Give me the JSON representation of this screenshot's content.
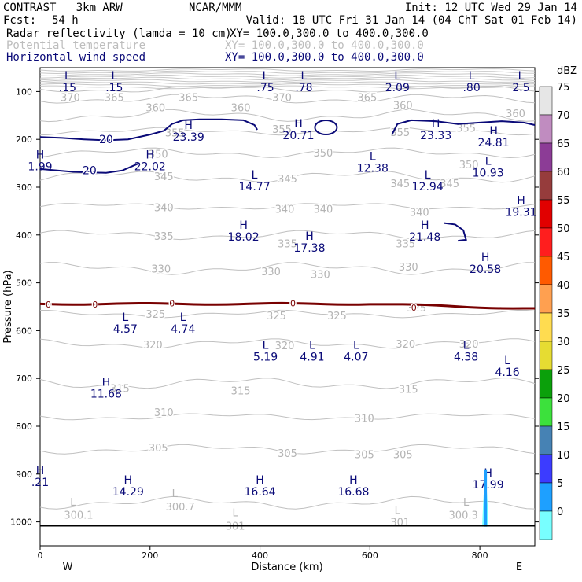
{
  "header": {
    "model": "CONTRAST   3km ARW",
    "org": "NCAR/MMM",
    "init": "Init: 12 UTC Wed 29 Jan 14",
    "fcst_label": "Fcst:",
    "fcst_value": "54 h",
    "valid": "Valid: 18 UTC Fri 31 Jan 14 (04 ChT Sat 01 Feb 14)",
    "fields": [
      {
        "name": "Radar reflectivity (lamda = 10 cm)",
        "xy": "XY= 100.0,300.0 to 400.0,300.0",
        "color": "#000000"
      },
      {
        "name": "Potential temperature",
        "xy": "XY= 100.0,300.0 to 400.0,300.0",
        "color": "#bdbdbd"
      },
      {
        "name": "Horizontal wind speed",
        "xy": "XY= 100.0,300.0 to 400.0,300.0",
        "color": "#0a0a78"
      }
    ]
  },
  "colorbar": {
    "unit": "dBZ",
    "levels": [
      "75",
      "70",
      "65",
      "60",
      "55",
      "50",
      "45",
      "40",
      "35",
      "30",
      "25",
      "20",
      "15",
      "10",
      "5",
      "0"
    ],
    "colors": [
      "#e6e6e6",
      "#c08cc0",
      "#8c3c96",
      "#963c3c",
      "#e10000",
      "#ff1e1e",
      "#ff5a00",
      "#ffa050",
      "#ffdc50",
      "#e6dc32",
      "#0ba00b",
      "#3ce13c",
      "#4682b4",
      "#3c3cff",
      "#1ea0ff",
      "#78ffff"
    ]
  },
  "chart_data": {
    "type": "cross-section",
    "xlabel": "Distance (km)",
    "ylabel": "Pressure (hPa)",
    "xlim": [
      0,
      900
    ],
    "ylim": [
      1050,
      50
    ],
    "x_ticks": [
      "0",
      "200",
      "400",
      "600",
      "800"
    ],
    "y_ticks": [
      "100",
      "200",
      "300",
      "400",
      "500",
      "600",
      "700",
      "800",
      "900",
      "1000"
    ],
    "compass_left": "W",
    "compass_right": "E",
    "theta_contours": [
      {
        "label": "370",
        "p": 95
      },
      {
        "label": "365",
        "p": 115
      },
      {
        "label": "360",
        "p": 150
      },
      {
        "label": "355",
        "p": 183
      },
      {
        "label": "350",
        "p": 228
      },
      {
        "label": "345",
        "p": 278
      },
      {
        "label": "340",
        "p": 340
      },
      {
        "label": "335",
        "p": 400
      },
      {
        "label": "330",
        "p": 470
      },
      {
        "label": "325",
        "p": 565
      },
      {
        "label": "320",
        "p": 627
      },
      {
        "label": "315",
        "p": 710
      },
      {
        "label": "310",
        "p": 780
      },
      {
        "label": "305",
        "p": 848
      },
      {
        "label": "300",
        "p": 960
      }
    ],
    "theta_labels": [
      {
        "text": "370",
        "x": 55,
        "p": 112
      },
      {
        "text": "365",
        "x": 135,
        "p": 112
      },
      {
        "text": "360",
        "x": 210,
        "p": 133
      },
      {
        "text": "365",
        "x": 270,
        "p": 112
      },
      {
        "text": "360",
        "x": 365,
        "p": 133
      },
      {
        "text": "370",
        "x": 440,
        "p": 112
      },
      {
        "text": "365",
        "x": 595,
        "p": 112
      },
      {
        "text": "360",
        "x": 660,
        "p": 128
      },
      {
        "text": "360",
        "x": 865,
        "p": 145
      },
      {
        "text": "355",
        "x": 245,
        "p": 186
      },
      {
        "text": "355",
        "x": 440,
        "p": 178
      },
      {
        "text": "355",
        "x": 655,
        "p": 185
      },
      {
        "text": "355",
        "x": 775,
        "p": 176
      },
      {
        "text": "350",
        "x": 215,
        "p": 230
      },
      {
        "text": "350",
        "x": 515,
        "p": 228
      },
      {
        "text": "350",
        "x": 780,
        "p": 252
      },
      {
        "text": "345",
        "x": 225,
        "p": 277
      },
      {
        "text": "345",
        "x": 450,
        "p": 282
      },
      {
        "text": "345",
        "x": 655,
        "p": 292
      },
      {
        "text": "345",
        "x": 745,
        "p": 292
      },
      {
        "text": "340",
        "x": 225,
        "p": 342
      },
      {
        "text": "340",
        "x": 445,
        "p": 345
      },
      {
        "text": "340",
        "x": 515,
        "p": 345
      },
      {
        "text": "340",
        "x": 690,
        "p": 352
      },
      {
        "text": "335",
        "x": 225,
        "p": 402
      },
      {
        "text": "335",
        "x": 450,
        "p": 418
      },
      {
        "text": "335",
        "x": 665,
        "p": 418
      },
      {
        "text": "330",
        "x": 220,
        "p": 470
      },
      {
        "text": "330",
        "x": 420,
        "p": 476
      },
      {
        "text": "330",
        "x": 510,
        "p": 482
      },
      {
        "text": "330",
        "x": 670,
        "p": 466
      },
      {
        "text": "325",
        "x": 210,
        "p": 565
      },
      {
        "text": "325",
        "x": 430,
        "p": 568
      },
      {
        "text": "325",
        "x": 540,
        "p": 568
      },
      {
        "text": "325",
        "x": 685,
        "p": 552
      },
      {
        "text": "320",
        "x": 205,
        "p": 629
      },
      {
        "text": "320",
        "x": 445,
        "p": 631
      },
      {
        "text": "320",
        "x": 665,
        "p": 627
      },
      {
        "text": "320",
        "x": 780,
        "p": 627
      },
      {
        "text": "315",
        "x": 145,
        "p": 720
      },
      {
        "text": "315",
        "x": 365,
        "p": 725
      },
      {
        "text": "315",
        "x": 670,
        "p": 722
      },
      {
        "text": "310",
        "x": 225,
        "p": 770
      },
      {
        "text": "310",
        "x": 590,
        "p": 783
      },
      {
        "text": "305",
        "x": 215,
        "p": 844
      },
      {
        "text": "305",
        "x": 450,
        "p": 856
      },
      {
        "text": "305",
        "x": 590,
        "p": 858
      },
      {
        "text": "305",
        "x": 660,
        "p": 858
      },
      {
        "text": "300.1",
        "x": 70,
        "p": 985
      },
      {
        "text": "300.7",
        "x": 255,
        "p": 968
      },
      {
        "text": "301",
        "x": 355,
        "p": 1008
      },
      {
        "text": "301",
        "x": 655,
        "p": 1000
      },
      {
        "text": "300.3",
        "x": 770,
        "p": 985
      }
    ],
    "theta_markers": [
      {
        "text": "L",
        "x": 60,
        "p": 958
      },
      {
        "text": "L",
        "x": 245,
        "p": 940
      },
      {
        "text": "L",
        "x": 355,
        "p": 980
      },
      {
        "text": "L",
        "x": 650,
        "p": 975
      },
      {
        "text": "L",
        "x": 775,
        "p": 958
      }
    ],
    "wind_extrema": [
      {
        "type": "L",
        "value": ".15",
        "x": 50,
        "p": 75
      },
      {
        "type": "L",
        "value": ".15",
        "x": 135,
        "p": 75
      },
      {
        "type": "L",
        "value": ".75",
        "x": 410,
        "p": 75
      },
      {
        "type": "L",
        "value": ".78",
        "x": 480,
        "p": 75
      },
      {
        "type": "L",
        "value": "2.09",
        "x": 650,
        "p": 75
      },
      {
        "type": "L",
        "value": ".80",
        "x": 785,
        "p": 75
      },
      {
        "type": "L",
        "value": "2.5",
        "x": 875,
        "p": 75
      },
      {
        "type": "H",
        "value": "23.39",
        "x": 270,
        "p": 178
      },
      {
        "type": "H",
        "value": "20.71",
        "x": 470,
        "p": 175
      },
      {
        "type": "H",
        "value": "23.33",
        "x": 720,
        "p": 175
      },
      {
        "type": "H",
        "value": "24.81",
        "x": 825,
        "p": 190
      },
      {
        "type": "H",
        "value": "1.99",
        "x": 0,
        "p": 240
      },
      {
        "type": "H",
        "value": "22.02",
        "x": 200,
        "p": 240
      },
      {
        "type": "L",
        "value": "14.77",
        "x": 390,
        "p": 282
      },
      {
        "type": "L",
        "value": "12.38",
        "x": 605,
        "p": 243
      },
      {
        "type": "L",
        "value": "12.94",
        "x": 705,
        "p": 282
      },
      {
        "type": "L",
        "value": "10.93",
        "x": 815,
        "p": 253
      },
      {
        "type": "H",
        "value": "19.31",
        "x": 875,
        "p": 335
      },
      {
        "type": "H",
        "value": "18.02",
        "x": 370,
        "p": 387
      },
      {
        "type": "H",
        "value": "17.38",
        "x": 490,
        "p": 410
      },
      {
        "type": "H",
        "value": "21.48",
        "x": 700,
        "p": 387
      },
      {
        "type": "H",
        "value": "20.58",
        "x": 810,
        "p": 455
      },
      {
        "type": "L",
        "value": "4.57",
        "x": 155,
        "p": 580
      },
      {
        "type": "L",
        "value": "4.74",
        "x": 260,
        "p": 580
      },
      {
        "type": "L",
        "value": "5.19",
        "x": 410,
        "p": 638
      },
      {
        "type": "L",
        "value": "4.91",
        "x": 495,
        "p": 638
      },
      {
        "type": "L",
        "value": "4.07",
        "x": 575,
        "p": 638
      },
      {
        "type": "L",
        "value": "4.38",
        "x": 775,
        "p": 638
      },
      {
        "type": "L",
        "value": "4.16",
        "x": 850,
        "p": 670
      },
      {
        "type": "H",
        "value": "11.68",
        "x": 120,
        "p": 715
      },
      {
        "type": "H",
        "value": "14.29",
        "x": 160,
        "p": 920
      },
      {
        "type": "H",
        "value": ".21",
        "x": 0,
        "p": 900
      },
      {
        "type": "H",
        "value": "16.64",
        "x": 400,
        "p": 920
      },
      {
        "type": "H",
        "value": "16.68",
        "x": 570,
        "p": 920
      },
      {
        "type": "H",
        "value": "17.99",
        "x": 815,
        "p": 905
      }
    ],
    "wind_contour_labels": [
      {
        "text": "20",
        "x": 120,
        "p": 200
      },
      {
        "text": "20",
        "x": 90,
        "p": 265
      }
    ],
    "zero_contour_labels": [
      {
        "text": "0",
        "x": 15,
        "p": 545
      },
      {
        "text": "0",
        "x": 100,
        "p": 545
      },
      {
        "text": "0",
        "x": 240,
        "p": 543
      },
      {
        "text": "0",
        "x": 460,
        "p": 543
      },
      {
        "text": "0",
        "x": 680,
        "p": 552
      }
    ],
    "reflectivity": {
      "x_km": 810,
      "p_top": 820,
      "p_bottom": 1010,
      "max_dbz": 10
    }
  }
}
